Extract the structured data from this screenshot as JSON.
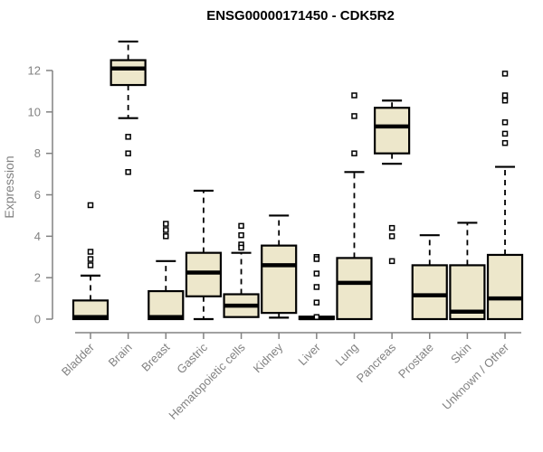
{
  "chart_data": {
    "type": "boxplot",
    "title": "ENSG00000171450 - CDK5R2",
    "xlabel": "",
    "ylabel": "Expression",
    "ylim": [
      0,
      12
    ],
    "yticks": [
      0,
      2,
      4,
      6,
      8,
      10,
      12
    ],
    "grid": false,
    "legend_position": "none",
    "categories": [
      "Bladder",
      "Brain",
      "Breast",
      "Gastric",
      "Hematopoietic cells",
      "Kidney",
      "Liver",
      "Lung",
      "Pancreas",
      "Prostate",
      "Skin",
      "Unknown / Other"
    ],
    "boxes": [
      {
        "category": "Bladder",
        "low": 0,
        "q1": 0,
        "median": 0.1,
        "q3": 0.9,
        "high": 2.1,
        "outliers": [
          5.5,
          3.25,
          2.9,
          2.6
        ]
      },
      {
        "category": "Brain",
        "low": 9.7,
        "q1": 11.3,
        "median": 12.1,
        "q3": 12.5,
        "high": 13.4,
        "outliers": [
          8.8,
          8.0,
          7.1
        ]
      },
      {
        "category": "Breast",
        "low": 0,
        "q1": 0,
        "median": 0.1,
        "q3": 1.35,
        "high": 2.8,
        "outliers": [
          4.6,
          4.3,
          4.0
        ]
      },
      {
        "category": "Gastric",
        "low": 0,
        "q1": 1.1,
        "median": 2.25,
        "q3": 3.2,
        "high": 6.2,
        "outliers": []
      },
      {
        "category": "Hematopoietic cells",
        "low": 0.1,
        "q1": 0.1,
        "median": 0.65,
        "q3": 1.2,
        "high": 3.2,
        "outliers": [
          4.5,
          4.05,
          3.6,
          3.45
        ]
      },
      {
        "category": "Kidney",
        "low": 0.07,
        "q1": 0.3,
        "median": 2.6,
        "q3": 3.55,
        "high": 5.0,
        "outliers": []
      },
      {
        "category": "Liver",
        "low": 0,
        "q1": 0,
        "median": 0.05,
        "q3": 0.12,
        "high": 0.15,
        "outliers": [
          3.0,
          2.9,
          2.2,
          1.55,
          0.8,
          0.1
        ]
      },
      {
        "category": "Lung",
        "low": 0,
        "q1": 0,
        "median": 1.75,
        "q3": 2.95,
        "high": 7.1,
        "outliers": [
          10.8,
          9.8,
          8.0
        ]
      },
      {
        "category": "Pancreas",
        "low": 7.5,
        "q1": 8.0,
        "median": 9.3,
        "q3": 10.2,
        "high": 10.55,
        "outliers": [
          4.4,
          4.0,
          2.8
        ]
      },
      {
        "category": "Prostate",
        "low": 0,
        "q1": 0,
        "median": 1.15,
        "q3": 2.6,
        "high": 4.05,
        "outliers": []
      },
      {
        "category": "Skin",
        "low": 0,
        "q1": 0,
        "median": 0.36,
        "q3": 2.6,
        "high": 4.65,
        "outliers": []
      },
      {
        "category": "Unknown / Other",
        "low": 0,
        "q1": 0,
        "median": 1.0,
        "q3": 3.1,
        "high": 7.35,
        "outliers": [
          11.85,
          10.8,
          10.55,
          9.5,
          8.95,
          8.5
        ]
      }
    ],
    "colors": {
      "box_fill": "#EDE7CB",
      "box_stroke": "#000000",
      "median": "#000000",
      "whisker": "#000000",
      "outlier_stroke": "#000000",
      "outlier_fill": "#FFFFFF",
      "axis": "#828282",
      "title": "#000000",
      "background": "#FFFFFF"
    }
  }
}
